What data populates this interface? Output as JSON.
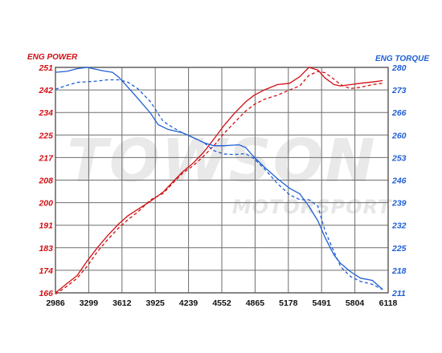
{
  "chart_data": {
    "type": "line",
    "title": "",
    "watermark": {
      "main": "TOWSON",
      "sub": "MOTORSPORT",
      "reg": "®"
    },
    "left_axis": {
      "label": "ENG POWER",
      "color": "#d10f14",
      "ylim": [
        166,
        251
      ],
      "ticks": [
        "251",
        "242",
        "234",
        "225",
        "217",
        "208",
        "200",
        "191",
        "183",
        "174",
        "166"
      ]
    },
    "right_axis": {
      "label": "ENG TORQUE",
      "color": "#1f5fd6",
      "ylim": [
        211,
        280
      ],
      "ticks": [
        "280",
        "273",
        "266",
        "260",
        "253",
        "246",
        "239",
        "232",
        "225",
        "218",
        "211"
      ]
    },
    "x_axis": {
      "label": "",
      "xlim": [
        2986,
        6274
      ],
      "ticks": [
        "2986",
        "3299",
        "3612",
        "3925",
        "4239",
        "4552",
        "4865",
        "5178",
        "5491",
        "5804",
        "6118"
      ]
    },
    "grid": true,
    "series": [
      {
        "axis": "left",
        "style": "solid",
        "color": "#d10f14",
        "points": [
          [
            2986,
            166
          ],
          [
            3100,
            169.5
          ],
          [
            3200,
            172.5
          ],
          [
            3300,
            178
          ],
          [
            3400,
            183
          ],
          [
            3500,
            187.5
          ],
          [
            3612,
            192
          ],
          [
            3700,
            195
          ],
          [
            3800,
            197.5
          ],
          [
            3925,
            200.5
          ],
          [
            4050,
            204
          ],
          [
            4150,
            208
          ],
          [
            4239,
            211.5
          ],
          [
            4350,
            215
          ],
          [
            4450,
            219
          ],
          [
            4552,
            224
          ],
          [
            4650,
            229
          ],
          [
            4750,
            233.5
          ],
          [
            4865,
            238
          ],
          [
            4950,
            240.5
          ],
          [
            5050,
            242.5
          ],
          [
            5178,
            244.5
          ],
          [
            5300,
            245
          ],
          [
            5400,
            247.5
          ],
          [
            5491,
            251
          ],
          [
            5580,
            250
          ],
          [
            5650,
            247
          ],
          [
            5740,
            244.5
          ],
          [
            5804,
            244
          ],
          [
            5900,
            244.5
          ],
          [
            6000,
            245
          ],
          [
            6118,
            245.5
          ],
          [
            6220,
            246
          ]
        ]
      },
      {
        "axis": "left",
        "style": "dashed",
        "color": "#d10f14",
        "points": [
          [
            2986,
            165.5
          ],
          [
            3100,
            168.5
          ],
          [
            3200,
            171.5
          ],
          [
            3300,
            176
          ],
          [
            3400,
            181.5
          ],
          [
            3500,
            186
          ],
          [
            3612,
            190.5
          ],
          [
            3700,
            193.5
          ],
          [
            3800,
            196.5
          ],
          [
            3925,
            201
          ],
          [
            4050,
            203.5
          ],
          [
            4150,
            207.5
          ],
          [
            4239,
            211
          ],
          [
            4350,
            214
          ],
          [
            4450,
            217.5
          ],
          [
            4552,
            221.5
          ],
          [
            4650,
            226
          ],
          [
            4750,
            230
          ],
          [
            4865,
            234.5
          ],
          [
            4950,
            237
          ],
          [
            5050,
            239
          ],
          [
            5178,
            240.5
          ],
          [
            5300,
            242.5
          ],
          [
            5400,
            244
          ],
          [
            5491,
            248
          ],
          [
            5580,
            249.5
          ],
          [
            5650,
            249
          ],
          [
            5740,
            246.5
          ],
          [
            5804,
            244.5
          ],
          [
            5900,
            243
          ],
          [
            6000,
            243.5
          ],
          [
            6118,
            244.5
          ],
          [
            6220,
            245
          ]
        ]
      },
      {
        "axis": "right",
        "style": "solid",
        "color": "#1f5fd6",
        "points": [
          [
            2986,
            278.5
          ],
          [
            3100,
            278.8
          ],
          [
            3200,
            279.6
          ],
          [
            3299,
            280
          ],
          [
            3450,
            279
          ],
          [
            3550,
            278.5
          ],
          [
            3612,
            277
          ],
          [
            3700,
            274
          ],
          [
            3800,
            270.5
          ],
          [
            3925,
            266
          ],
          [
            4000,
            262.5
          ],
          [
            4100,
            261
          ],
          [
            4239,
            260
          ],
          [
            4350,
            258.5
          ],
          [
            4450,
            257
          ],
          [
            4552,
            256
          ],
          [
            4650,
            256
          ],
          [
            4750,
            256.2
          ],
          [
            4800,
            256.3
          ],
          [
            4865,
            255.5
          ],
          [
            4950,
            252.5
          ],
          [
            5050,
            249.5
          ],
          [
            5178,
            246
          ],
          [
            5300,
            243
          ],
          [
            5400,
            241.3
          ],
          [
            5491,
            237.5
          ],
          [
            5580,
            233
          ],
          [
            5650,
            228
          ],
          [
            5740,
            222.5
          ],
          [
            5804,
            220
          ],
          [
            5900,
            217.5
          ],
          [
            6000,
            215.5
          ],
          [
            6118,
            214.8
          ],
          [
            6220,
            212
          ]
        ]
      },
      {
        "axis": "right",
        "style": "dashed",
        "color": "#1f5fd6",
        "points": [
          [
            2986,
            273.3
          ],
          [
            3100,
            274.5
          ],
          [
            3200,
            275.4
          ],
          [
            3299,
            275.6
          ],
          [
            3400,
            275.8
          ],
          [
            3500,
            276.2
          ],
          [
            3612,
            276.2
          ],
          [
            3700,
            275.5
          ],
          [
            3800,
            273.5
          ],
          [
            3925,
            269.5
          ],
          [
            4050,
            263.5
          ],
          [
            4150,
            261.5
          ],
          [
            4239,
            260
          ],
          [
            4350,
            258.5
          ],
          [
            4450,
            257
          ],
          [
            4552,
            254.5
          ],
          [
            4650,
            253.5
          ],
          [
            4750,
            253.3
          ],
          [
            4865,
            253.6
          ],
          [
            4950,
            252
          ],
          [
            5050,
            249
          ],
          [
            5178,
            244.5
          ],
          [
            5300,
            241
          ],
          [
            5400,
            239.5
          ],
          [
            5491,
            239.5
          ],
          [
            5580,
            237.5
          ],
          [
            5650,
            230
          ],
          [
            5740,
            223.5
          ],
          [
            5804,
            219
          ],
          [
            5900,
            216
          ],
          [
            6000,
            214.5
          ],
          [
            6118,
            213.6
          ],
          [
            6220,
            212
          ]
        ]
      }
    ]
  }
}
